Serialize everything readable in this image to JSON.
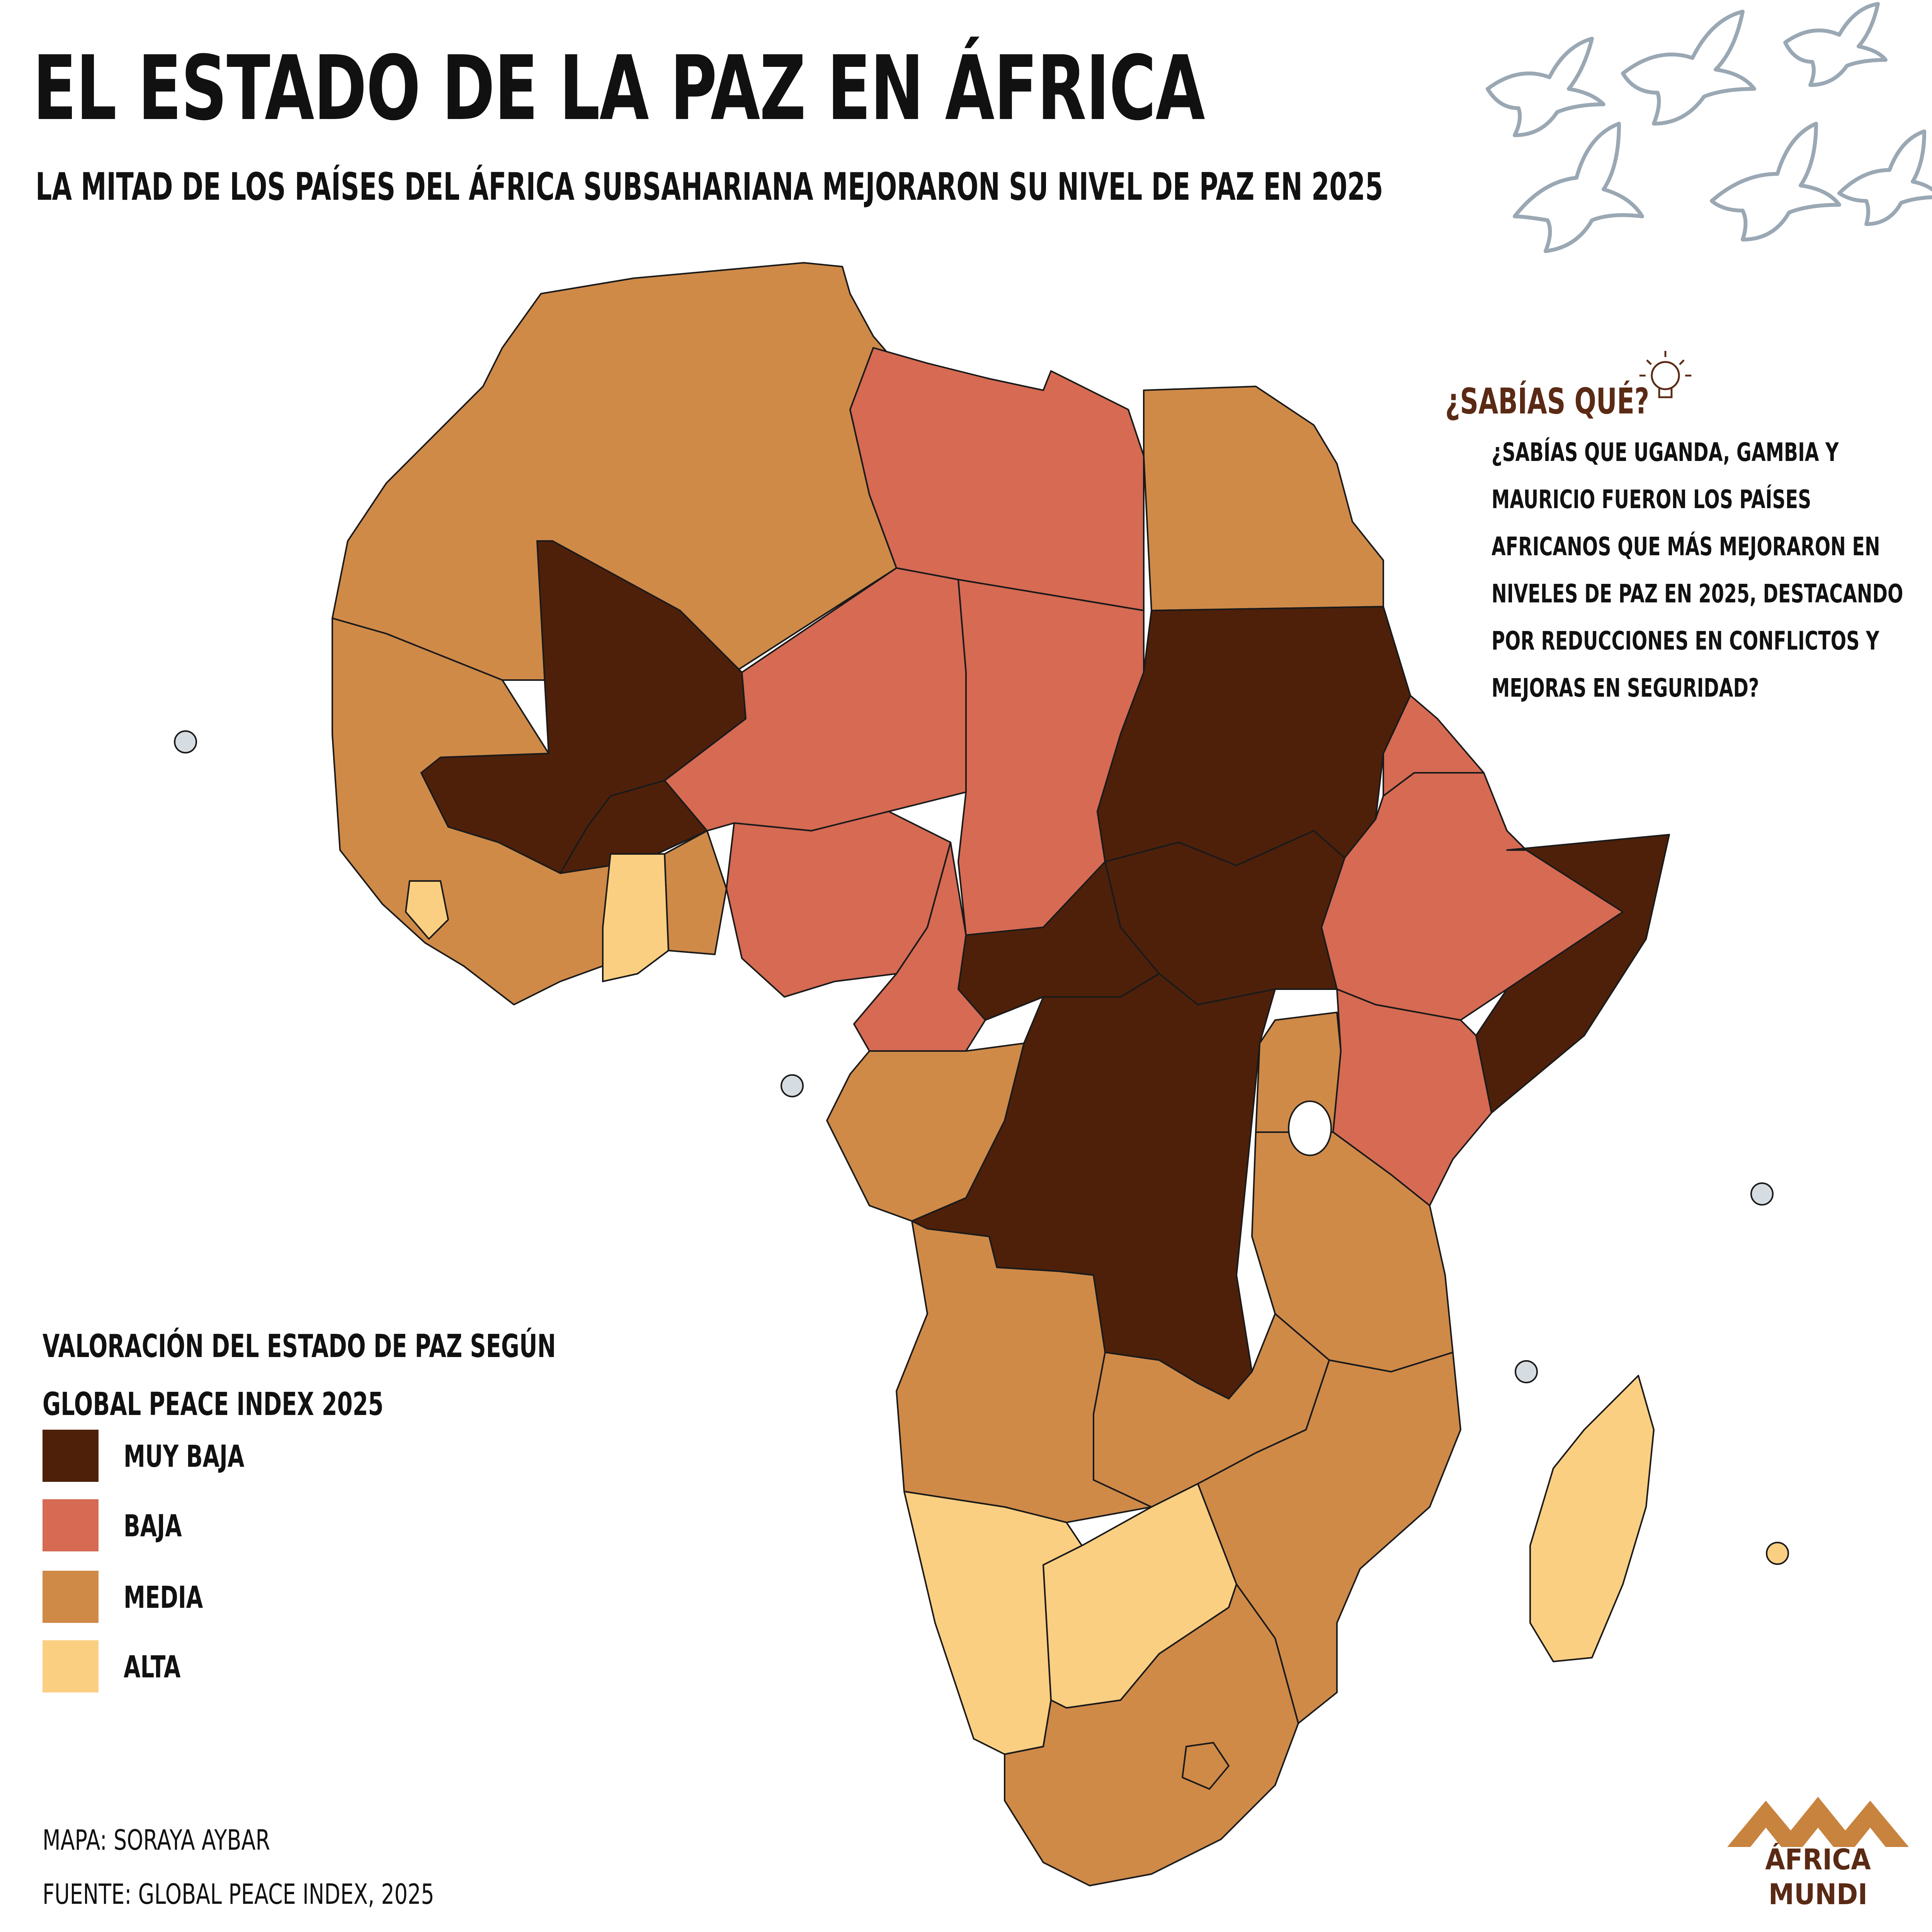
{
  "header": {
    "title": "EL ESTADO DE LA PAZ EN ÁFRICA",
    "subtitle": "LA MITAD DE LOS PAÍSES DEL ÁFRICA SUBSAHARIANA MEJORARON SU NIVEL DE PAZ EN 2025"
  },
  "did_you_know": {
    "title": "¿SABÍAS QUÉ?",
    "text": "¿SABÍAS QUE UGANDA, GAMBIA Y\nMAURICIO FUERON LOS PAÍSES\nAFRICANOS QUE MÁS MEJORARON EN\nNIVELES DE PAZ EN 2025, DESTACANDO\nPOR REDUCCIONES EN CONFLICTOS Y\nMEJORAS EN SEGURIDAD?",
    "icon": "lightbulb-icon"
  },
  "legend": {
    "title": "VALORACIÓN DEL ESTADO DE PAZ SEGÚN GLOBAL PEACE INDEX 2025",
    "items": [
      {
        "label": "MUY BAJA",
        "color": "#4e200a"
      },
      {
        "label": "BAJA",
        "color": "#d66a53"
      },
      {
        "label": "MEDIA",
        "color": "#cf8a48"
      },
      {
        "label": "ALTA",
        "color": "#fbcf82"
      }
    ]
  },
  "credits": {
    "map": "MAPA: SORAYA AYBAR",
    "source": "FUENTE: GLOBAL PEACE INDEX, 2025"
  },
  "logo": {
    "line1": "ÁFRICA",
    "line2": "MUNDI",
    "colors": [
      "#c8833f",
      "#5a2a14"
    ]
  },
  "map_colors": {
    "muy_baja": "#4e200a",
    "baja": "#d66a53",
    "media": "#cf8a48",
    "alta": "#fbcf82",
    "no_data": "#d6dde2",
    "border": "#1a1a1a",
    "doves": "#9aa8b4"
  }
}
